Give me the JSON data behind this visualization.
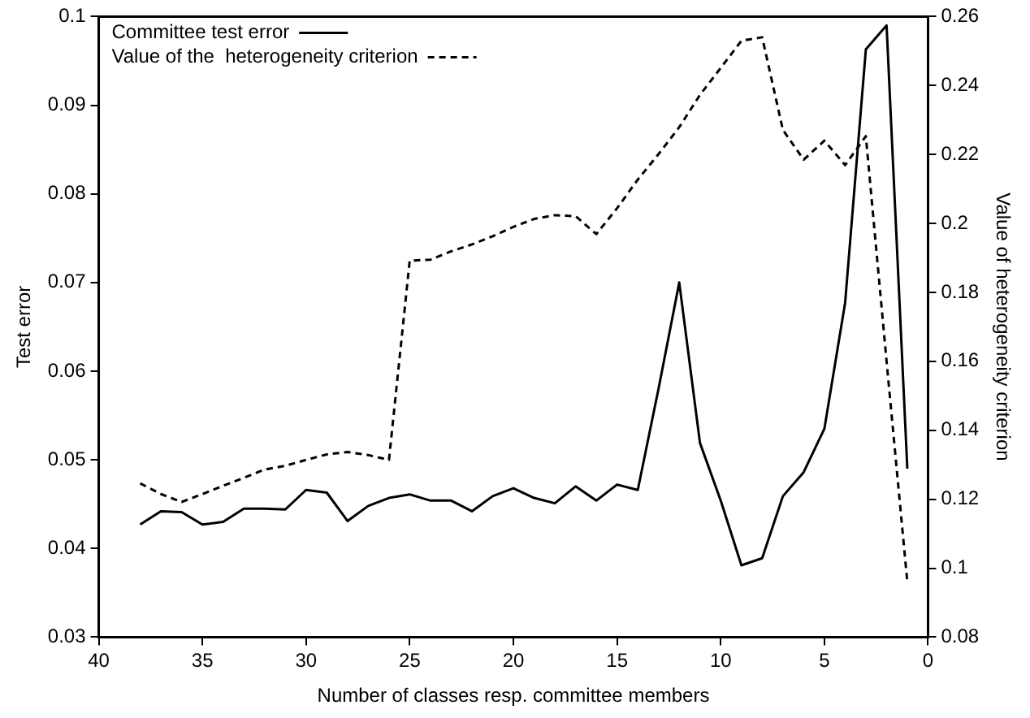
{
  "chart_data": {
    "type": "line",
    "xlabel": "Number of classes resp. committee members",
    "ylabel": "Test error",
    "y2label": "Value of heterogeneity criterion",
    "x": [
      38,
      37,
      36,
      35,
      34,
      33,
      32,
      31,
      30,
      29,
      28,
      27,
      26,
      25,
      24,
      23,
      22,
      21,
      20,
      19,
      18,
      17,
      16,
      15,
      14,
      13,
      12,
      11,
      10,
      9,
      8,
      7,
      6,
      5,
      4,
      3,
      2,
      1
    ],
    "series": [
      {
        "name": "Committee test error",
        "color": "#000000",
        "line_style": "solid",
        "values": [
          0.0427,
          0.0442,
          0.0441,
          0.0427,
          0.043,
          0.0445,
          0.0445,
          0.0444,
          0.0466,
          0.0463,
          0.0431,
          0.0448,
          0.0457,
          0.0461,
          0.0454,
          0.0454,
          0.0442,
          0.0459,
          0.0468,
          0.0457,
          0.0451,
          0.047,
          0.0454,
          0.0472,
          0.0466,
          0.058,
          0.07,
          0.0519,
          0.0454,
          0.0381,
          0.0389,
          0.0459,
          0.0486,
          0.0535,
          0.0677,
          0.0963,
          0.099,
          0.049
        ]
      },
      {
        "name": "Value of the  heterogeneity criterion",
        "color": "#000000",
        "line_style": "dashed",
        "axis": "y2",
        "values": [
          0.1246,
          0.1215,
          0.1192,
          0.1215,
          0.1239,
          0.1262,
          0.1286,
          0.1297,
          0.1314,
          0.133,
          0.1337,
          0.1328,
          0.1314,
          0.1892,
          0.1895,
          0.1919,
          0.1939,
          0.1963,
          0.199,
          0.2013,
          0.2024,
          0.2021,
          0.1969,
          0.2044,
          0.2127,
          0.2201,
          0.2279,
          0.2373,
          0.2451,
          0.253,
          0.254,
          0.2271,
          0.2185,
          0.224,
          0.2169,
          0.2253,
          0.16,
          0.096
        ]
      }
    ],
    "xlim": [
      40,
      0
    ],
    "xticks": [
      40,
      35,
      30,
      25,
      20,
      15,
      10,
      5,
      0
    ],
    "ylim": [
      0.03,
      0.1
    ],
    "yticks": [
      0.03,
      0.04,
      0.05,
      0.06,
      0.07,
      0.08,
      0.09,
      0.1
    ],
    "y2lim": [
      0.08,
      0.26
    ],
    "y2ticks": [
      0.08,
      0.1,
      0.12,
      0.14,
      0.16,
      0.18,
      0.2,
      0.22,
      0.24,
      0.26
    ],
    "grid": false,
    "legend": "top left",
    "marker": "none"
  }
}
